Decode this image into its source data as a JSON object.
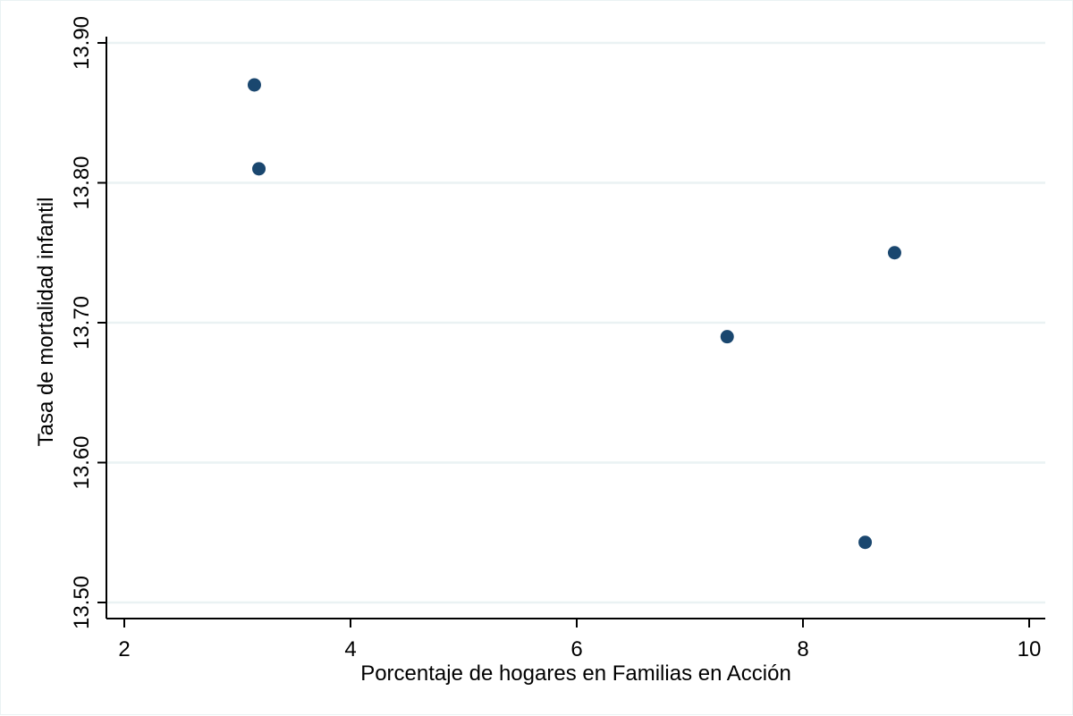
{
  "chart_data": {
    "type": "scatter",
    "title": "",
    "xlabel": "Porcentaje de hogares en Familias en Acción",
    "ylabel": "Tasa de mortalidad infantil",
    "xlim": [
      2,
      10
    ],
    "ylim": [
      13.5,
      13.9
    ],
    "xticks": [
      "2",
      "4",
      "6",
      "8",
      "10"
    ],
    "yticks": [
      "13.50",
      "13.60",
      "13.70",
      "13.80",
      "13.90"
    ],
    "grid": "horizontal",
    "series": [
      {
        "points": [
          {
            "x": 3.15,
            "y": 13.87
          },
          {
            "x": 3.19,
            "y": 13.81
          },
          {
            "x": 7.33,
            "y": 13.69
          },
          {
            "x": 8.81,
            "y": 13.75
          },
          {
            "x": 8.55,
            "y": 13.543
          }
        ]
      }
    ]
  },
  "colors": {
    "marker": "#1a476f",
    "grid": "#eaf2f3",
    "axis": "#000000"
  }
}
